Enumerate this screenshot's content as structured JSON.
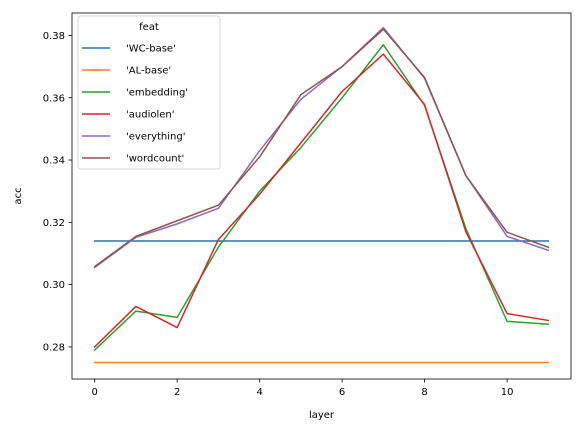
{
  "chart_data": {
    "type": "line",
    "xlabel": "layer",
    "ylabel": "acc",
    "xlim": [
      -0.55,
      11.55
    ],
    "ylim": [
      0.2697,
      0.3872
    ],
    "xticks": [
      0,
      2,
      4,
      6,
      8,
      10
    ],
    "yticks": [
      0.28,
      0.3,
      0.32,
      0.34,
      0.36,
      0.38
    ],
    "ytick_labels": [
      "0.28",
      "0.30",
      "0.32",
      "0.34",
      "0.36",
      "0.38"
    ],
    "grid": false,
    "legend": {
      "title": "feat",
      "placement": "upper-left"
    },
    "x": [
      0,
      1,
      2,
      3,
      4,
      5,
      6,
      7,
      8,
      9,
      10,
      11
    ],
    "series": [
      {
        "name": "'WC-base'",
        "color": "#1f77b4",
        "values": [
          0.314,
          0.314,
          0.314,
          0.314,
          0.314,
          0.314,
          0.314,
          0.314,
          0.314,
          0.314,
          0.314,
          0.314
        ]
      },
      {
        "name": "'AL-base'",
        "color": "#ff7f0e",
        "values": [
          0.275,
          0.275,
          0.275,
          0.275,
          0.275,
          0.275,
          0.275,
          0.275,
          0.275,
          0.275,
          0.275,
          0.275
        ]
      },
      {
        "name": "'embedding'",
        "color": "#2ca02c",
        "values": [
          0.279,
          0.2915,
          0.2895,
          0.312,
          0.33,
          0.344,
          0.36,
          0.377,
          0.3575,
          0.318,
          0.2882,
          0.2873
        ]
      },
      {
        "name": "'audiolen'",
        "color": "#d62728",
        "values": [
          0.28,
          0.293,
          0.2862,
          0.3145,
          0.329,
          0.3455,
          0.362,
          0.374,
          0.3578,
          0.317,
          0.2907,
          0.2885
        ]
      },
      {
        "name": "'everything'",
        "color": "#9467bd",
        "values": [
          0.3055,
          0.3152,
          0.3195,
          0.3245,
          0.343,
          0.3595,
          0.37,
          0.3825,
          0.3662,
          0.335,
          0.3155,
          0.311
        ]
      },
      {
        "name": "'wordcount'",
        "color": "#8c564b",
        "values": [
          0.3058,
          0.3155,
          0.3205,
          0.3255,
          0.341,
          0.361,
          0.37,
          0.382,
          0.3665,
          0.335,
          0.3168,
          0.312
        ]
      }
    ]
  }
}
